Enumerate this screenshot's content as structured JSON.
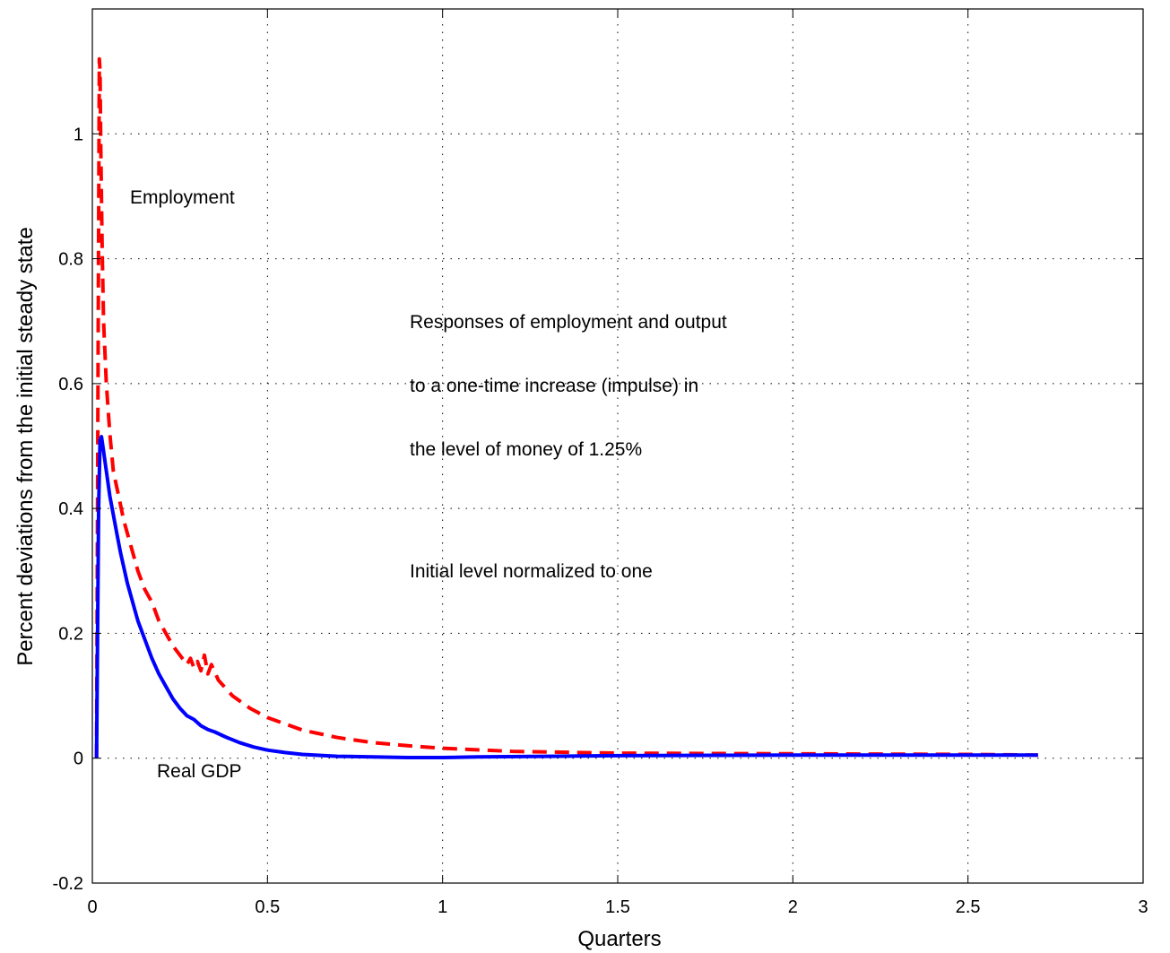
{
  "chart_data": {
    "type": "line",
    "xlabel": "Quarters",
    "ylabel": "Percent deviations from the initial steady state",
    "xlim": [
      0,
      3
    ],
    "ylim": [
      -0.2,
      1.2
    ],
    "xticks": [
      0,
      0.5,
      1,
      1.5,
      2,
      2.5,
      3
    ],
    "xtick_labels": [
      "0",
      "0.5",
      "1",
      "1.5",
      "2",
      "2.5",
      "3"
    ],
    "yticks": [
      -0.2,
      0,
      0.2,
      0.4,
      0.6,
      0.8,
      1
    ],
    "ytick_labels": [
      "-0.2",
      "0",
      "0.2",
      "0.4",
      "0.6",
      "0.8",
      "1"
    ],
    "grid": true,
    "series": [
      {
        "name": "Employment",
        "color": "#ff0000",
        "style": "dashed",
        "x": [
          0.012,
          0.016,
          0.02,
          0.022,
          0.024,
          0.028,
          0.032,
          0.04,
          0.05,
          0.06,
          0.075,
          0.09,
          0.11,
          0.13,
          0.15,
          0.17,
          0.19,
          0.21,
          0.23,
          0.25,
          0.27,
          0.28,
          0.29,
          0.3,
          0.31,
          0.32,
          0.33,
          0.34,
          0.36,
          0.4,
          0.45,
          0.5,
          0.6,
          0.7,
          0.8,
          0.9,
          1.0,
          1.2,
          1.5,
          2.0,
          2.5,
          2.7
        ],
        "y": [
          0.0,
          0.6,
          1.12,
          1.1,
          0.98,
          0.82,
          0.7,
          0.6,
          0.52,
          0.46,
          0.42,
          0.38,
          0.34,
          0.3,
          0.27,
          0.25,
          0.22,
          0.2,
          0.18,
          0.165,
          0.15,
          0.16,
          0.145,
          0.155,
          0.14,
          0.165,
          0.135,
          0.15,
          0.125,
          0.1,
          0.08,
          0.065,
          0.045,
          0.033,
          0.025,
          0.02,
          0.016,
          0.011,
          0.008,
          0.007,
          0.006,
          0.005
        ]
      },
      {
        "name": "Real GDP",
        "color": "#0000ff",
        "style": "solid",
        "x": [
          0.012,
          0.018,
          0.022,
          0.026,
          0.03,
          0.04,
          0.05,
          0.06,
          0.07,
          0.08,
          0.09,
          0.1,
          0.11,
          0.12,
          0.13,
          0.15,
          0.17,
          0.19,
          0.21,
          0.23,
          0.25,
          0.27,
          0.29,
          0.31,
          0.33,
          0.35,
          0.38,
          0.42,
          0.46,
          0.5,
          0.55,
          0.6,
          0.7,
          0.8,
          0.9,
          1.0,
          1.1,
          1.3,
          1.5,
          2.0,
          2.5,
          2.7
        ],
        "y": [
          0.0,
          0.4,
          0.51,
          0.515,
          0.5,
          0.46,
          0.42,
          0.39,
          0.36,
          0.33,
          0.305,
          0.28,
          0.26,
          0.24,
          0.22,
          0.19,
          0.16,
          0.135,
          0.115,
          0.095,
          0.08,
          0.068,
          0.062,
          0.052,
          0.046,
          0.042,
          0.034,
          0.025,
          0.018,
          0.013,
          0.009,
          0.006,
          0.003,
          0.002,
          0.001,
          0.001,
          0.002,
          0.003,
          0.004,
          0.005,
          0.005,
          0.005
        ]
      }
    ],
    "annotations": {
      "employment_label": "Employment",
      "gdp_label": "Real GDP",
      "note_line1": "Responses of employment and output",
      "note_line2": "to a one-time increase (impulse) in",
      "note_line3": "the level of money of 1.25%",
      "note_line4": "Initial level normalized to one"
    }
  }
}
